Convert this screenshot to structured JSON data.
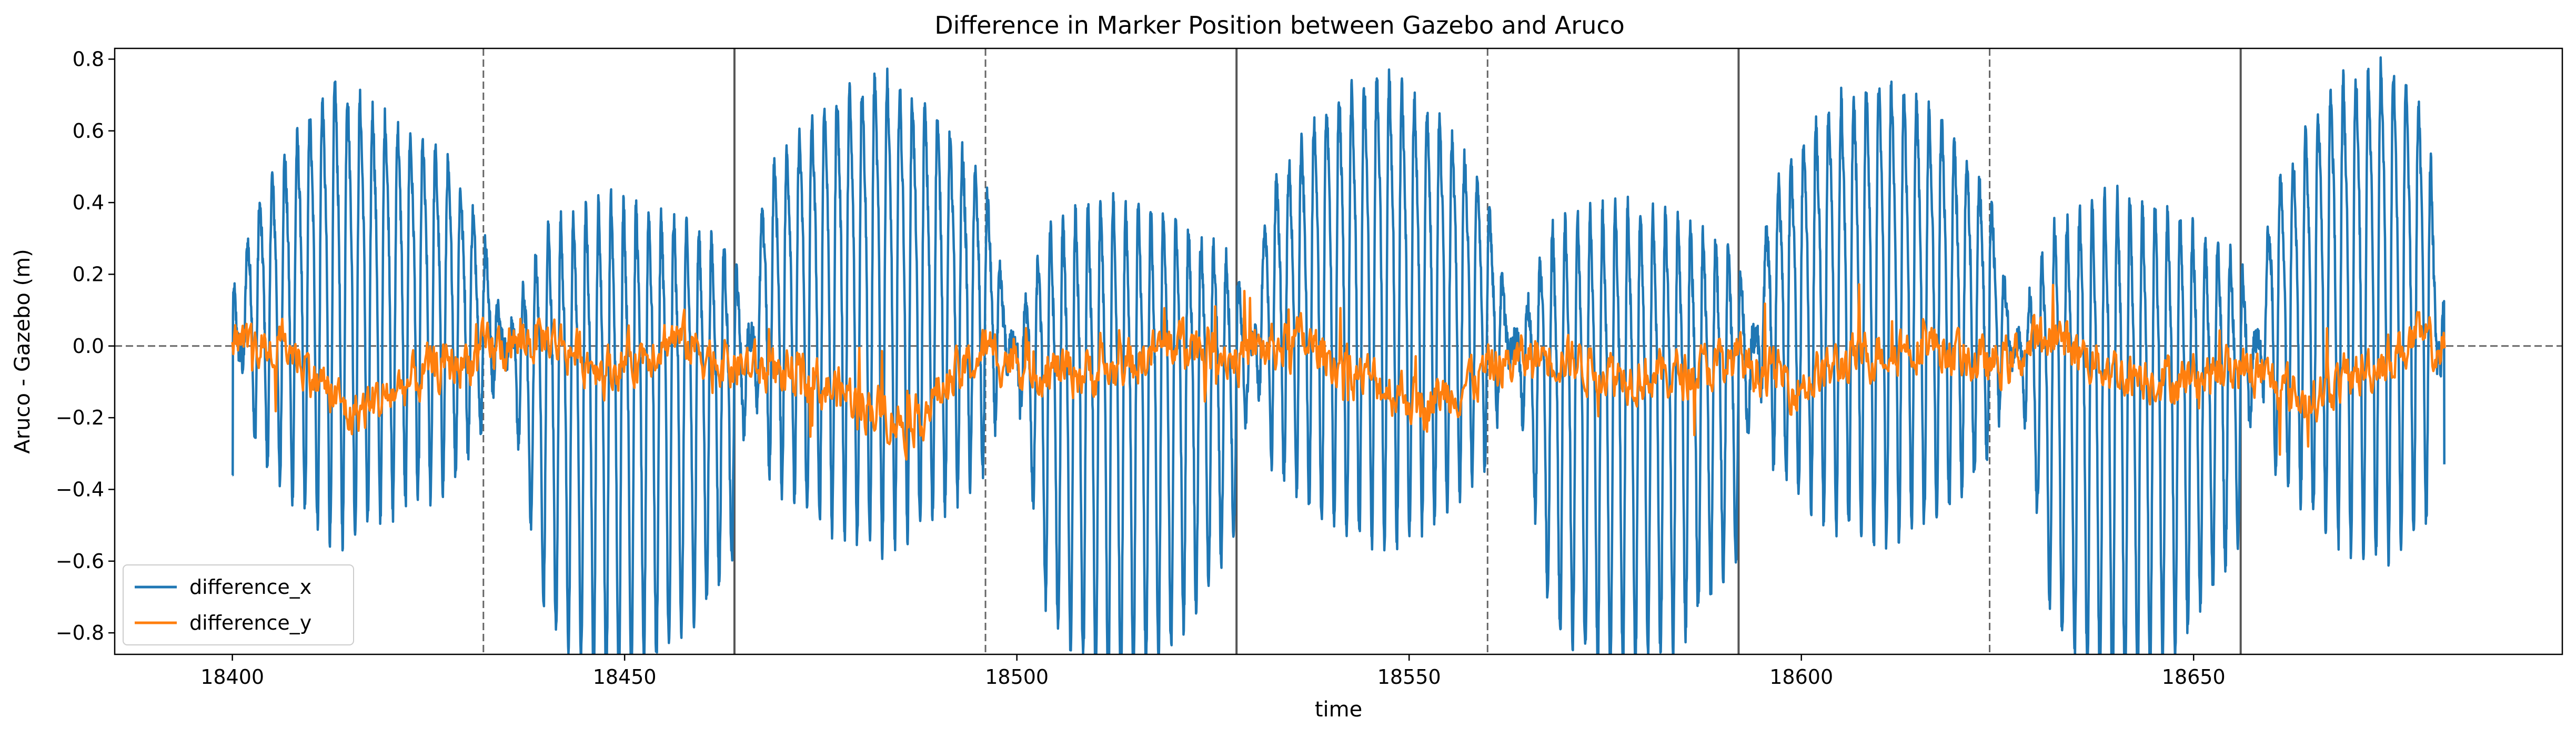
{
  "chart_data": {
    "type": "line",
    "title": "Difference in Marker Position between Gazebo and Aruco",
    "xlabel": "time",
    "ylabel": "Aruco - Gazebo (m)",
    "xlim": [
      18385,
      18697
    ],
    "ylim": [
      -0.86,
      0.83
    ],
    "x_ticks": [
      18400,
      18450,
      18500,
      18550,
      18600,
      18650
    ],
    "y_ticks": [
      -0.8,
      -0.6,
      -0.4,
      -0.2,
      0.0,
      0.2,
      0.4,
      0.6,
      0.8
    ],
    "y_tick_labels": [
      "−0.8",
      "−0.6",
      "−0.4",
      "−0.2",
      "0.0",
      "0.2",
      "0.4",
      "0.6",
      "0.8"
    ],
    "grid": false,
    "legend_position": "lower-left",
    "reference_lines": {
      "horizontal_dashed_y": 0.0,
      "vertical_dashed_x": [
        18432,
        18496,
        18560,
        18624
      ],
      "vertical_solid_x": [
        18464,
        18528,
        18592,
        18656
      ]
    },
    "series": [
      {
        "name": "difference_x",
        "color": "#1f77b4",
        "x_range": [
          18400,
          18682
        ],
        "oscillation_period": 1.6,
        "points": [
          {
            "x": 18400,
            "y": -0.36
          },
          {
            "x": 18402,
            "y": 0.3
          },
          {
            "x": 18405,
            "y": 0.45
          },
          {
            "x": 18413,
            "y": 0.7
          },
          {
            "x": 18420,
            "y": 0.6
          },
          {
            "x": 18427,
            "y": 0.5
          },
          {
            "x": 18432,
            "y": 0.3
          },
          {
            "x": 18440,
            "y": -0.6
          },
          {
            "x": 18448,
            "y": -0.75
          },
          {
            "x": 18456,
            "y": -0.65
          },
          {
            "x": 18464,
            "y": -0.46
          },
          {
            "x": 18468,
            "y": 0.45
          },
          {
            "x": 18476,
            "y": 0.65
          },
          {
            "x": 18483,
            "y": 0.72
          },
          {
            "x": 18490,
            "y": 0.6
          },
          {
            "x": 18496,
            "y": 0.43
          },
          {
            "x": 18504,
            "y": -0.6
          },
          {
            "x": 18512,
            "y": -0.76
          },
          {
            "x": 18520,
            "y": -0.65
          },
          {
            "x": 18528,
            "y": -0.4
          },
          {
            "x": 18532,
            "y": 0.4
          },
          {
            "x": 18540,
            "y": 0.65
          },
          {
            "x": 18547,
            "y": 0.72
          },
          {
            "x": 18554,
            "y": 0.6
          },
          {
            "x": 18560,
            "y": 0.4
          },
          {
            "x": 18568,
            "y": -0.6
          },
          {
            "x": 18576,
            "y": -0.72
          },
          {
            "x": 18584,
            "y": -0.65
          },
          {
            "x": 18592,
            "y": -0.45
          },
          {
            "x": 18596,
            "y": 0.4
          },
          {
            "x": 18604,
            "y": 0.65
          },
          {
            "x": 18611,
            "y": 0.7
          },
          {
            "x": 18618,
            "y": 0.6
          },
          {
            "x": 18624,
            "y": 0.4
          },
          {
            "x": 18632,
            "y": -0.6
          },
          {
            "x": 18640,
            "y": -0.78
          },
          {
            "x": 18648,
            "y": -0.65
          },
          {
            "x": 18656,
            "y": -0.42
          },
          {
            "x": 18660,
            "y": 0.4
          },
          {
            "x": 18668,
            "y": 0.7
          },
          {
            "x": 18675,
            "y": 0.75
          },
          {
            "x": 18680,
            "y": 0.6
          },
          {
            "x": 18682,
            "y": -0.33
          }
        ]
      },
      {
        "name": "difference_y",
        "color": "#ff7f0e",
        "x_range": [
          18400,
          18682
        ],
        "points": [
          {
            "x": 18400,
            "y": 0.03
          },
          {
            "x": 18407,
            "y": 0.08
          },
          {
            "x": 18415,
            "y": -0.28
          },
          {
            "x": 18425,
            "y": -0.06
          },
          {
            "x": 18433,
            "y": 0.05
          },
          {
            "x": 18440,
            "y": 0.12
          },
          {
            "x": 18448,
            "y": -0.05
          },
          {
            "x": 18456,
            "y": 0.12
          },
          {
            "x": 18464,
            "y": -0.03
          },
          {
            "x": 18472,
            "y": -0.08
          },
          {
            "x": 18480,
            "y": -0.2
          },
          {
            "x": 18486,
            "y": -0.32
          },
          {
            "x": 18496,
            "y": 0.05
          },
          {
            "x": 18504,
            "y": -0.05
          },
          {
            "x": 18512,
            "y": -0.06
          },
          {
            "x": 18521,
            "y": 0.1
          },
          {
            "x": 18528,
            "y": 0.02
          },
          {
            "x": 18536,
            "y": 0.1
          },
          {
            "x": 18544,
            "y": -0.08
          },
          {
            "x": 18552,
            "y": -0.22
          },
          {
            "x": 18560,
            "y": -0.05
          },
          {
            "x": 18568,
            "y": 0.04
          },
          {
            "x": 18576,
            "y": -0.06
          },
          {
            "x": 18584,
            "y": -0.08
          },
          {
            "x": 18592,
            "y": 0.0
          },
          {
            "x": 18600,
            "y": -0.12
          },
          {
            "x": 18608,
            "y": 0.03
          },
          {
            "x": 18616,
            "y": 0.1
          },
          {
            "x": 18624,
            "y": -0.04
          },
          {
            "x": 18632,
            "y": 0.12
          },
          {
            "x": 18640,
            "y": -0.05
          },
          {
            "x": 18648,
            "y": -0.1
          },
          {
            "x": 18656,
            "y": -0.03
          },
          {
            "x": 18664,
            "y": -0.2
          },
          {
            "x": 18672,
            "y": -0.05
          },
          {
            "x": 18678,
            "y": 0.1
          },
          {
            "x": 18682,
            "y": 0.05
          }
        ]
      }
    ]
  }
}
